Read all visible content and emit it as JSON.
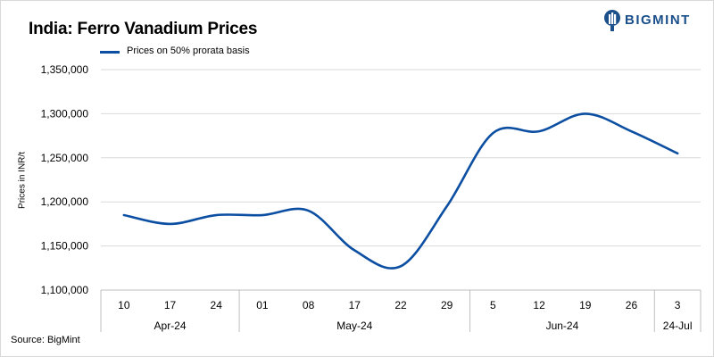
{
  "title": "India: Ferro Vanadium Prices",
  "brand": {
    "name": "BIGMINT",
    "color": "#1b4f8a"
  },
  "source": "Source: BigMint",
  "chart_data": {
    "type": "line",
    "ylabel": "Prices in INR/t",
    "ylim": [
      1100000,
      1350000
    ],
    "yticks": [
      1100000,
      1150000,
      1200000,
      1250000,
      1300000,
      1350000
    ],
    "ytick_labels": [
      "1,100,000",
      "1,150,000",
      "1,200,000",
      "1,250,000",
      "1,300,000",
      "1,350,000"
    ],
    "grid": true,
    "legend_position": "top-left",
    "categories": [
      "10",
      "17",
      "24",
      "01",
      "08",
      "17",
      "22",
      "29",
      "5",
      "12",
      "19",
      "26",
      "3"
    ],
    "groups": [
      {
        "label": "Apr-24",
        "count": 3
      },
      {
        "label": "May-24",
        "count": 5
      },
      {
        "label": "Jun-24",
        "count": 4
      },
      {
        "label": "24-Jul",
        "count": 1
      }
    ],
    "series": [
      {
        "name": "Prices on 50% prorata basis",
        "color": "#0b4ea2",
        "values": [
          1185000,
          1175000,
          1185000,
          1185000,
          1190000,
          1145000,
          1127000,
          1195000,
          1278000,
          1280000,
          1300000,
          1280000,
          1255000
        ]
      }
    ]
  }
}
